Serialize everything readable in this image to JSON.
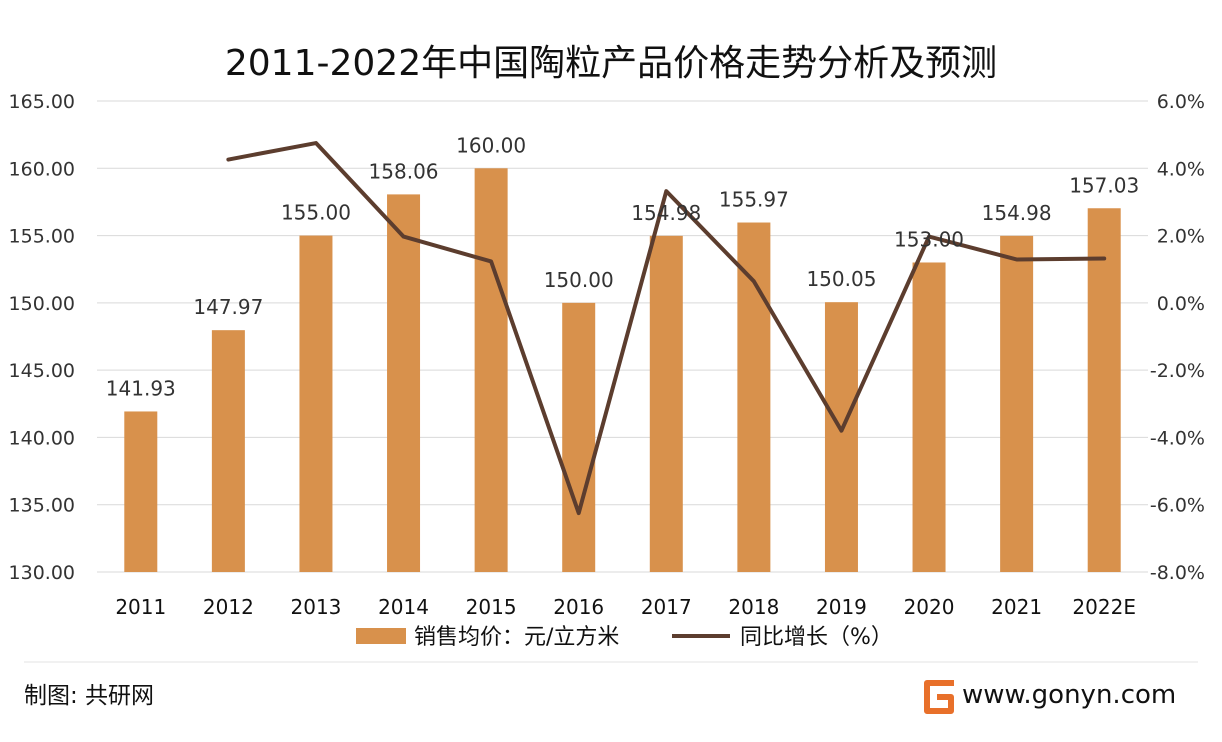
{
  "chart_data": {
    "type": "bar",
    "title": "2011-2022年中国陶粒产品价格走势分析及预测",
    "categories": [
      "2011",
      "2012",
      "2013",
      "2014",
      "2015",
      "2016",
      "2017",
      "2018",
      "2019",
      "2020",
      "2021",
      "2022E"
    ],
    "series": [
      {
        "name": "销售均价：元/立方米",
        "type": "bar",
        "axis": "left",
        "values": [
          141.93,
          147.97,
          155.0,
          158.06,
          160.0,
          150.0,
          154.98,
          155.97,
          150.05,
          153.0,
          154.98,
          157.03
        ],
        "labels": [
          "141.93",
          "147.97",
          "155.00",
          "158.06",
          "160.00",
          "150.00",
          "154.98",
          "155.97",
          "150.05",
          "153.00",
          "154.98",
          "157.03"
        ]
      },
      {
        "name": "同比增长（%）",
        "type": "line",
        "axis": "right",
        "values": [
          null,
          4.26,
          4.75,
          1.97,
          1.23,
          -6.25,
          3.32,
          0.64,
          -3.8,
          1.97,
          1.29,
          1.32
        ]
      }
    ],
    "y_left": {
      "range": [
        130,
        165
      ],
      "ticks": [
        130,
        135,
        140,
        145,
        150,
        155,
        160,
        165
      ],
      "tick_labels": [
        "130.00",
        "135.00",
        "140.00",
        "145.00",
        "150.00",
        "155.00",
        "160.00",
        "165.00"
      ]
    },
    "y_right": {
      "range": [
        -8,
        6
      ],
      "ticks": [
        -8,
        -6,
        -4,
        -2,
        0,
        2,
        4,
        6
      ],
      "tick_labels": [
        "-8.0%",
        "-6.0%",
        "-4.0%",
        "-2.0%",
        "0.0%",
        "2.0%",
        "4.0%",
        "6.0%"
      ]
    },
    "grid": "horizontal",
    "legend": "bottom",
    "colors": {
      "bar": "#d8914c",
      "line": "#5c3d2e",
      "grid": "#d9d9d9",
      "logo": "#e8702a"
    }
  },
  "footer": {
    "source_label": "制图: 共研网",
    "website": "www.gonyn.com",
    "logo_icon": "gonyn-logo-icon"
  }
}
